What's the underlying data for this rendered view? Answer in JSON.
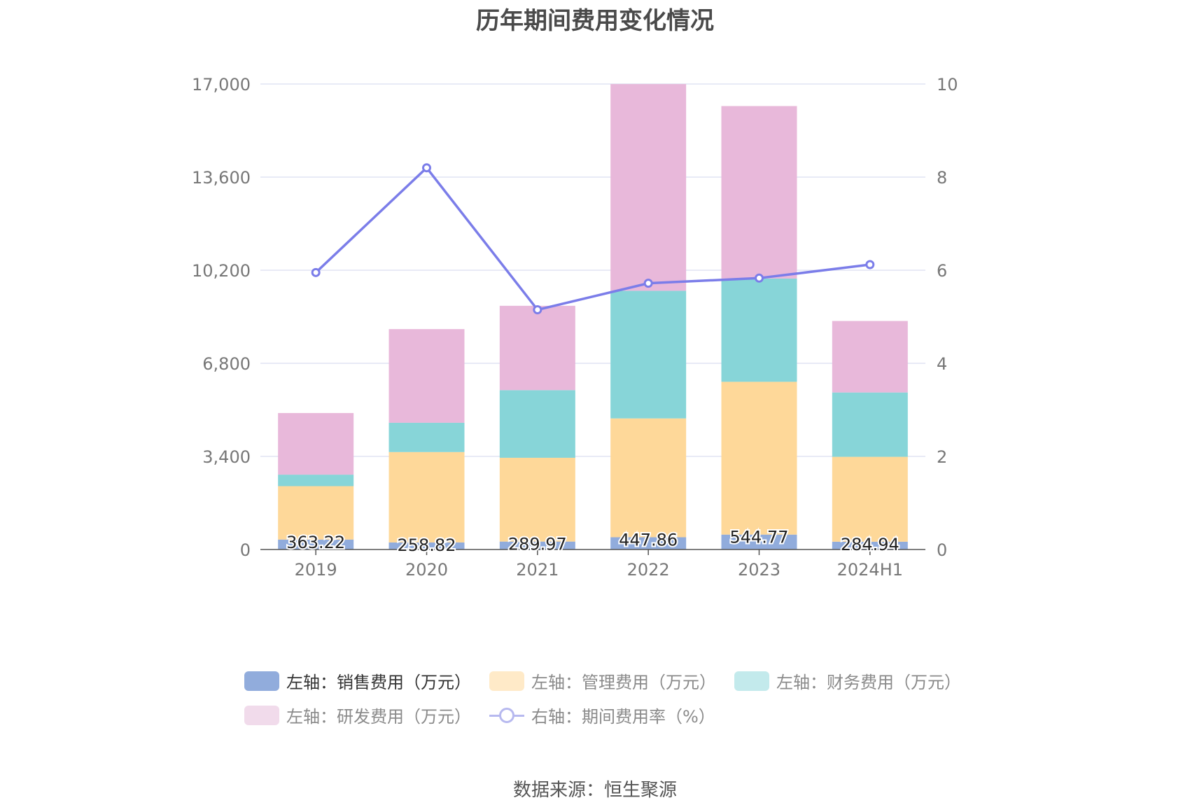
{
  "source": "数据来源：恒生聚源",
  "chart_data": {
    "type": "bar",
    "title": "历年期间费用变化情况",
    "categories": [
      "2019",
      "2020",
      "2021",
      "2022",
      "2023",
      "2024H1"
    ],
    "stacked": true,
    "left_axis": {
      "ticks": [
        "0",
        "3,400",
        "6,800",
        "10,200",
        "13,600",
        "17,000"
      ],
      "ylim": [
        0,
        17000
      ]
    },
    "right_axis": {
      "ticks": [
        "0",
        "2",
        "4",
        "6",
        "8",
        "10"
      ],
      "ylim": [
        0,
        10
      ]
    },
    "series": [
      {
        "name": "左轴：销售费用（万元）",
        "color": "#91acdc",
        "values": [
          363.22,
          258.82,
          289.97,
          447.86,
          544.77,
          284.94
        ],
        "labels": [
          "363.22",
          "258.82",
          "289.97",
          "447.86",
          "544.77",
          "284.94"
        ]
      },
      {
        "name": "左轴：管理费用（万元）",
        "color": "#fed899",
        "values": [
          1950,
          3300,
          3060,
          4340,
          5580,
          3100
        ]
      },
      {
        "name": "左轴：财务费用（万元）",
        "color": "#87d5d8",
        "values": [
          420,
          1070,
          2470,
          4660,
          3770,
          2350
        ]
      },
      {
        "name": "左轴：研发费用（万元）",
        "color": "#e8b8da",
        "values": [
          2250,
          3420,
          3080,
          7550,
          6300,
          2610
        ]
      },
      {
        "name": "右轴：期间费用率（%）",
        "color": "#7b7de9",
        "type": "line",
        "axis": "right",
        "values": [
          5.95,
          8.2,
          5.15,
          5.72,
          5.83,
          6.12
        ]
      }
    ],
    "legend": [
      {
        "label": "左轴：销售费用（万元）",
        "color": "#91acdc"
      },
      {
        "label": "左轴：管理费用（万元）",
        "color": "#ffeac8"
      },
      {
        "label": "左轴：财务费用（万元）",
        "color": "#c3eaec"
      },
      {
        "label": "左轴：研发费用（万元）",
        "color": "#f1dbeb"
      },
      {
        "label": "右轴：期间费用率（%）",
        "color": "#b7b9ef"
      }
    ]
  }
}
